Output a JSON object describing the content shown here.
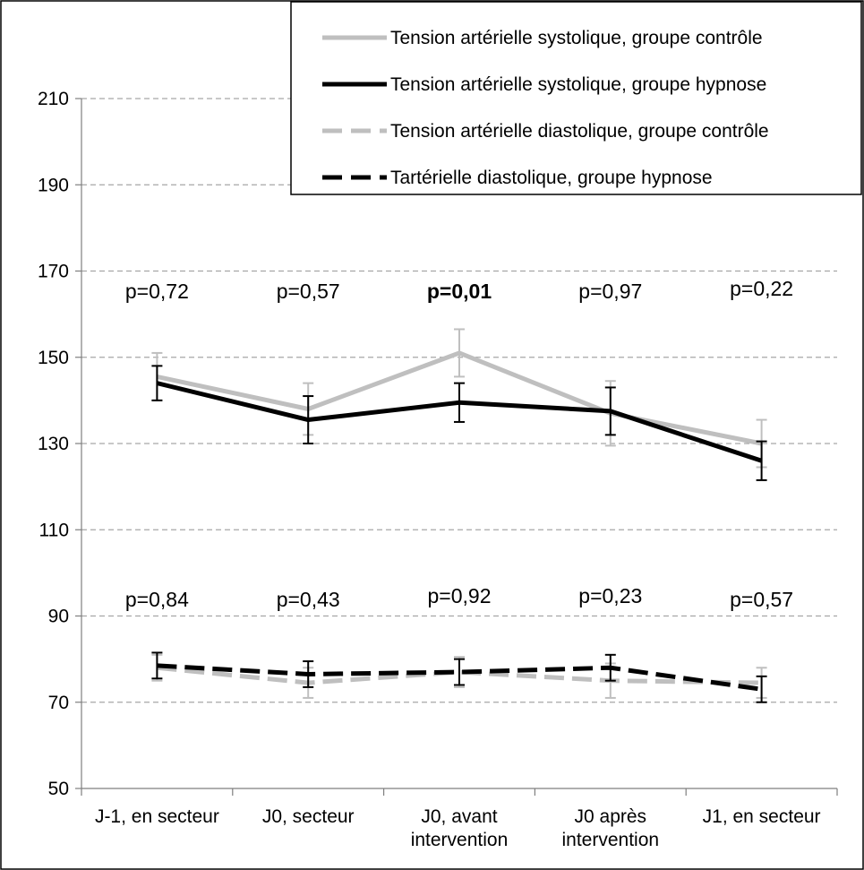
{
  "chart_data": {
    "type": "line",
    "categories": [
      [
        "J-1, en secteur"
      ],
      [
        "J0, secteur"
      ],
      [
        "J0, avant",
        "intervention"
      ],
      [
        "J0 après",
        "intervention"
      ],
      [
        "J1, en secteur"
      ]
    ],
    "ylim": [
      50,
      210
    ],
    "yticks": [
      50,
      70,
      90,
      110,
      130,
      150,
      170,
      190,
      210
    ],
    "grid": true,
    "legend_position": "top-right",
    "series": [
      {
        "name": "Tension artérielle systolique, groupe contrôle",
        "color": "#bfbfbf",
        "dash": false,
        "values": [
          145.5,
          138,
          151,
          137,
          130
        ],
        "error": [
          5.5,
          6,
          5.5,
          7.5,
          5.5
        ]
      },
      {
        "name": "Tension artérielle systolique, groupe hypnose",
        "color": "#000000",
        "dash": false,
        "values": [
          144,
          135.5,
          139.5,
          137.5,
          126
        ],
        "error": [
          4,
          5.5,
          4.5,
          5.5,
          4.5
        ]
      },
      {
        "name": "Tension artérielle diastolique, groupe contrôle",
        "color": "#bfbfbf",
        "dash": true,
        "values": [
          78,
          74.5,
          77,
          75,
          74.5
        ],
        "error": [
          3,
          3.5,
          3.5,
          4,
          3.5
        ]
      },
      {
        "name": "Tartérielle diastolique, groupe hypnose",
        "color": "#000000",
        "dash": true,
        "values": [
          78.5,
          76.5,
          77,
          78,
          73
        ],
        "error": [
          3,
          3,
          3,
          3,
          3
        ]
      }
    ],
    "annotations_systolic": [
      {
        "text": "p=0,72",
        "bold": false
      },
      {
        "text": "p=0,57",
        "bold": false
      },
      {
        "text": "p=0,01",
        "bold": true
      },
      {
        "text": "p=0,97",
        "bold": false
      },
      {
        "text": "p=0,22",
        "bold": false
      }
    ],
    "annotations_diastolic": [
      {
        "text": "p=0,84",
        "bold": false
      },
      {
        "text": "p=0,43",
        "bold": false
      },
      {
        "text": "p=0,92",
        "bold": false
      },
      {
        "text": "p=0,23",
        "bold": false
      },
      {
        "text": "p=0,57",
        "bold": false
      }
    ]
  }
}
